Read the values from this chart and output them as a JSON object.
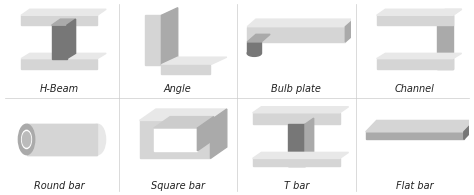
{
  "labels": [
    [
      "H-Beam",
      "Angle",
      "Bulb plate",
      "Channel"
    ],
    [
      "Round bar",
      "Square bar",
      "T bar",
      "Flat bar"
    ]
  ],
  "figsize": [
    4.74,
    1.95
  ],
  "dpi": 100,
  "label_fontsize": 7.0,
  "label_color": "#222222",
  "bg_color": "#ffffff",
  "cell_bg": "#ffffff",
  "shape_mid": "#aaaaaa",
  "shape_dark": "#777777",
  "shape_light": "#d5d5d5",
  "shape_lighter": "#e8e8e8"
}
